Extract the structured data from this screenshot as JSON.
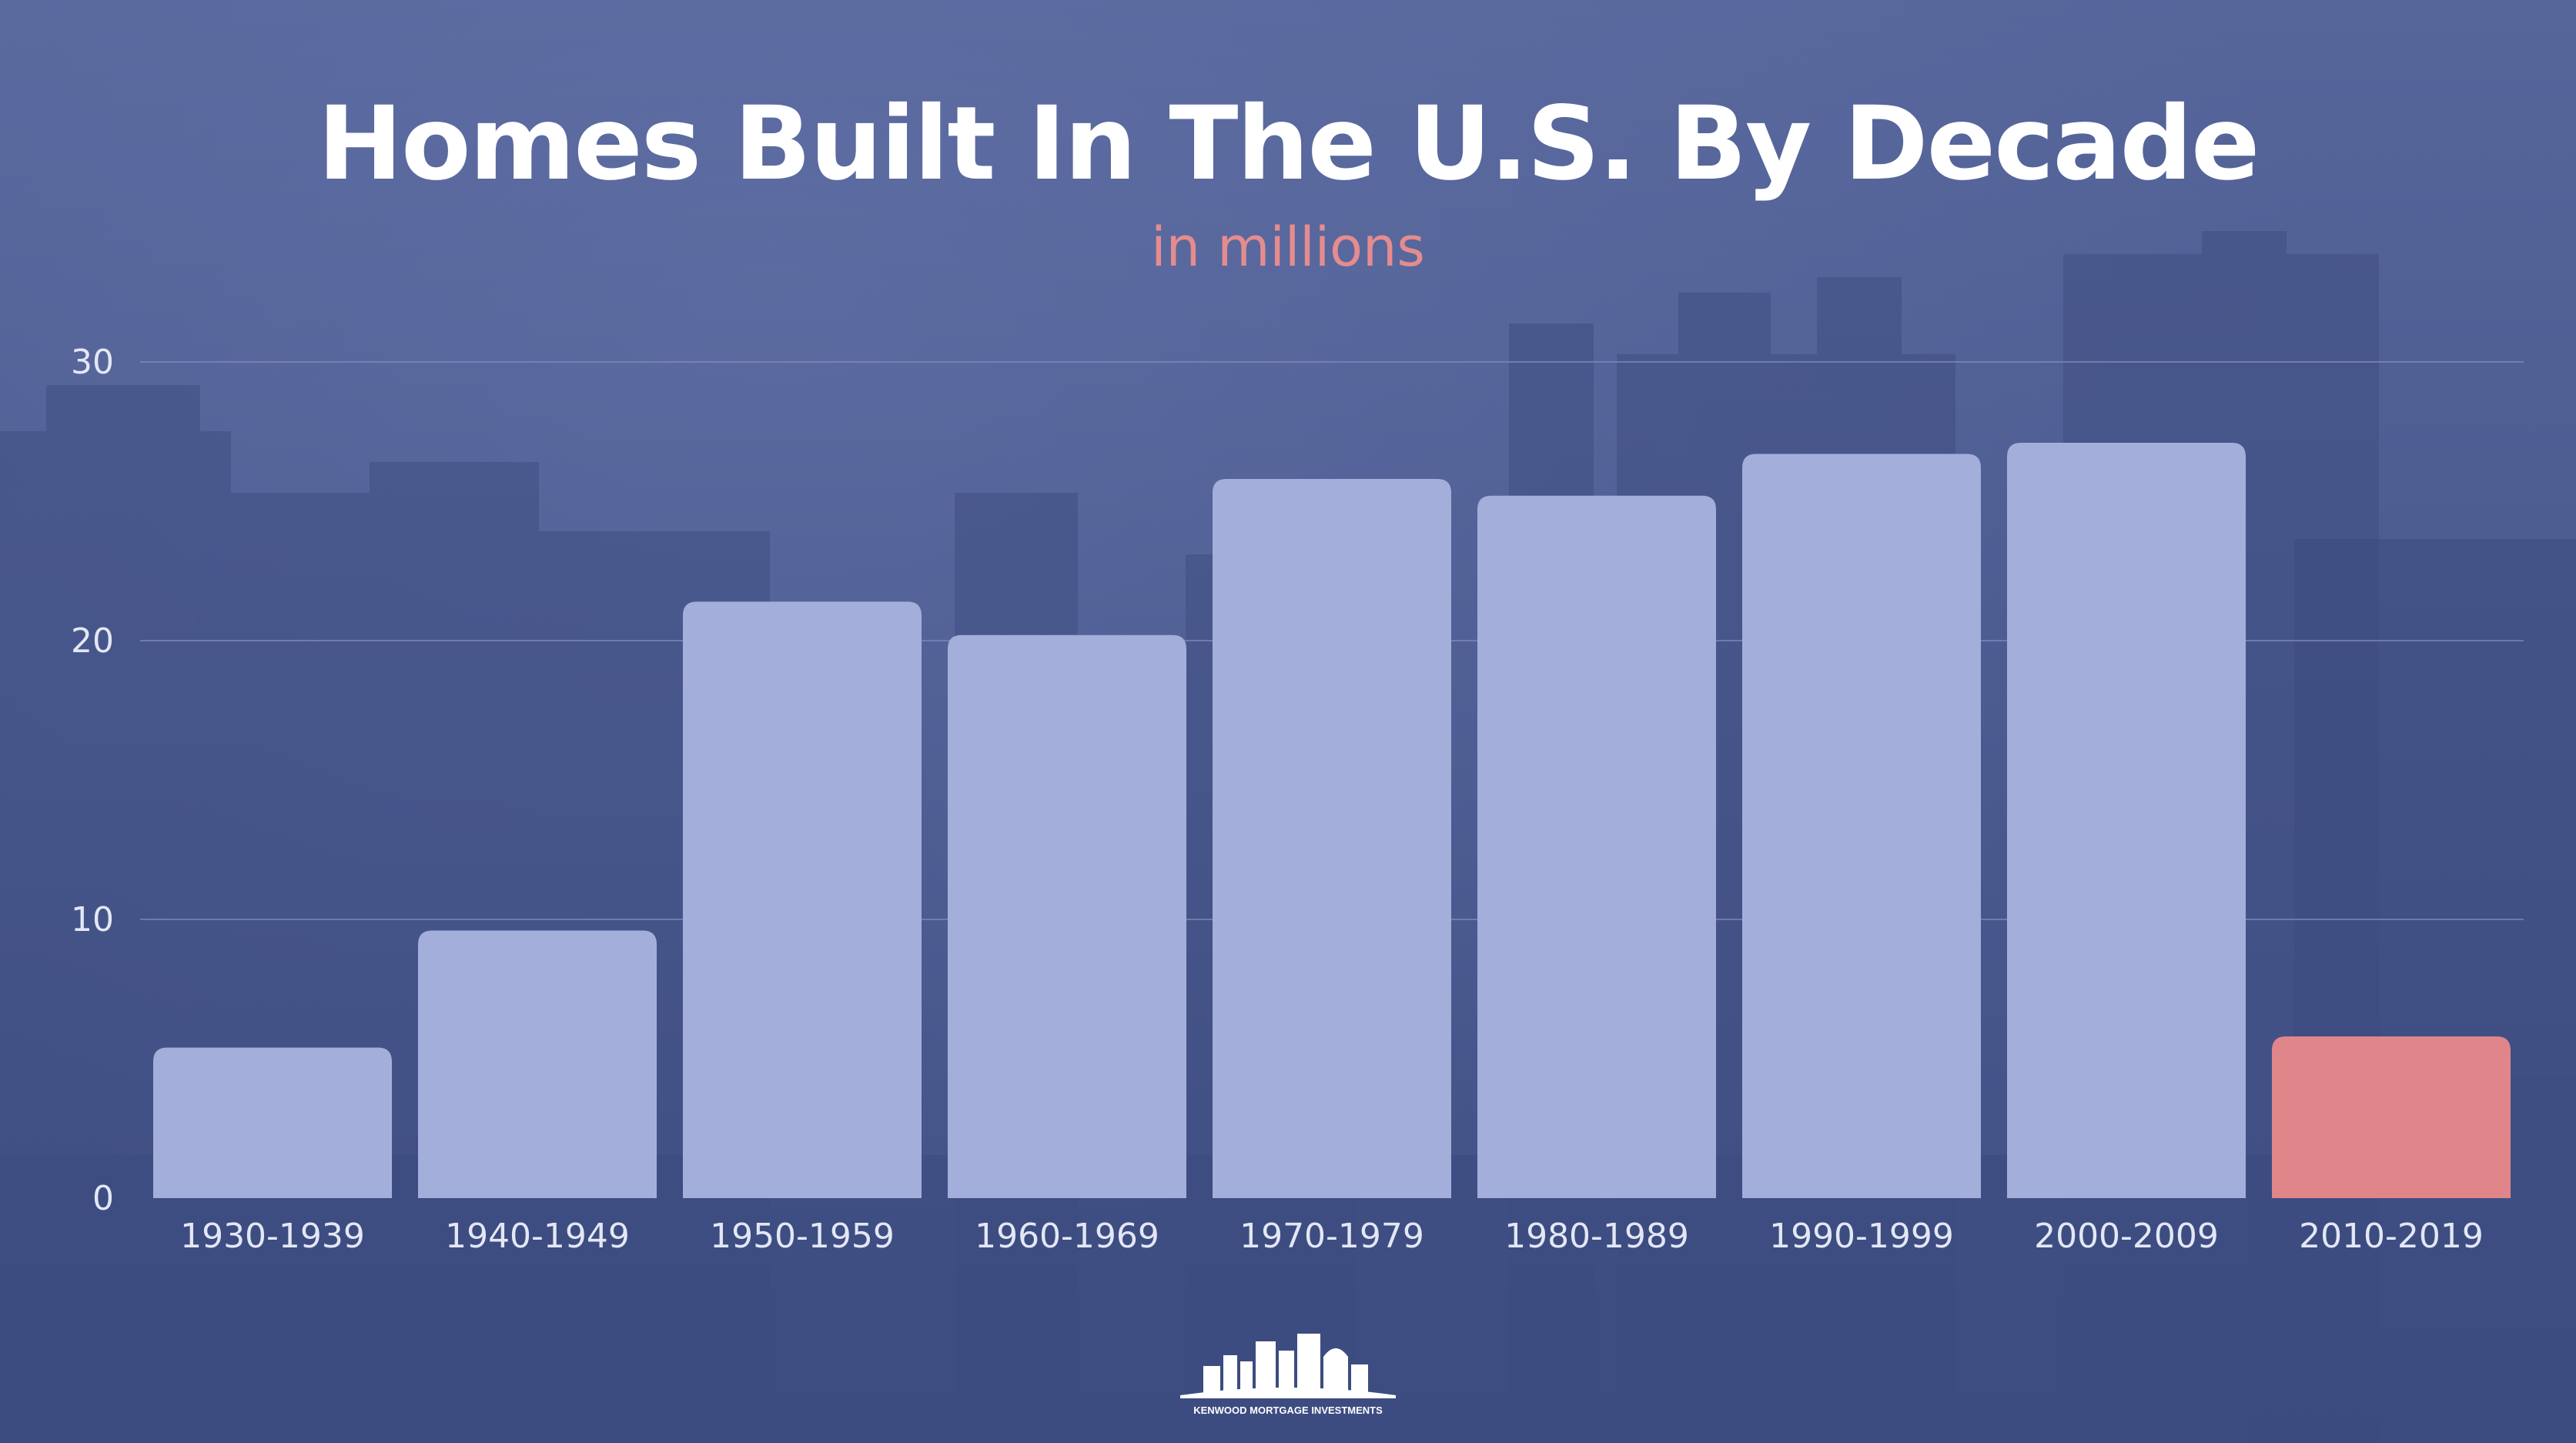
{
  "page": {
    "title": "Homes Built In The U.S. By Decade",
    "subtitle": "in millions"
  },
  "colors": {
    "background": "#4d5d91",
    "bar": "#a3aedb",
    "highlight_bar": "#e0868a",
    "title": "#ffffff",
    "subtitle": "#e58c8e",
    "gridline": "#7f8cbb",
    "axis_text": "#e3e7f5"
  },
  "chart_data": {
    "type": "bar",
    "title": "Homes Built In The U.S. By Decade",
    "subtitle": "in millions",
    "categories": [
      "1930-1939",
      "1940-1949",
      "1950-1959",
      "1960-1969",
      "1970-1979",
      "1980-1989",
      "1990-1999",
      "2000-2009",
      "2010-2019"
    ],
    "values": [
      5.4,
      9.6,
      21.4,
      20.2,
      25.8,
      25.2,
      26.7,
      27.1,
      5.8
    ],
    "highlight_index": 8,
    "ylim": [
      0,
      30
    ],
    "yticks": [
      0,
      10,
      20,
      30
    ],
    "grid": true,
    "legend": "none",
    "xlabel": "",
    "ylabel": ""
  },
  "logo": {
    "icon": "city-skyline-icon",
    "text": "KENWOOD MORTGAGE INVESTMENTS"
  }
}
